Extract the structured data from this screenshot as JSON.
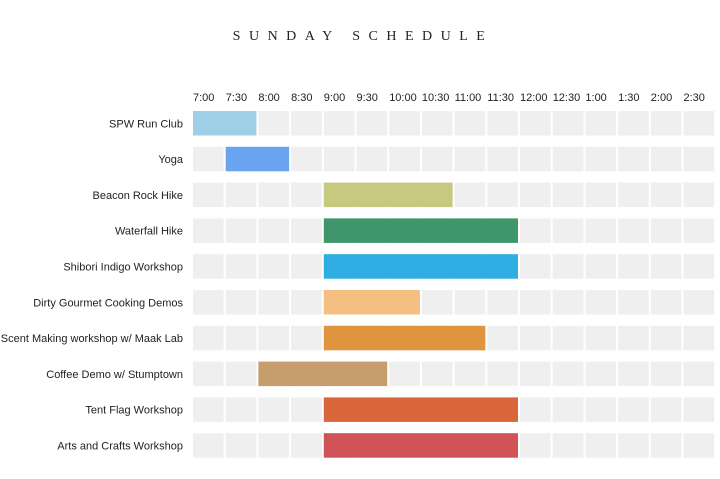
{
  "chart_data": {
    "type": "bar",
    "subtype": "gantt",
    "title": "SUNDAY SCHEDULE",
    "x_ticks": [
      "7:00",
      "7:30",
      "8:00",
      "8:30",
      "9:00",
      "9:30",
      "10:00",
      "10:30",
      "11:00",
      "11:30",
      "12:00",
      "12:30",
      "1:00",
      "1:30",
      "2:00",
      "2:30"
    ],
    "xlim": [
      "7:00",
      "3:00"
    ],
    "x_axis_position": "top",
    "grid": true,
    "grid_cell_color": "#efefef",
    "rows": [
      {
        "label": "SPW Run Club",
        "start": "7:00",
        "end": "8:00",
        "color": "#9ecfe6"
      },
      {
        "label": "Yoga",
        "start": "7:30",
        "end": "8:30",
        "color": "#6aa3ef"
      },
      {
        "label": "Beacon Rock Hike",
        "start": "9:00",
        "end": "11:00",
        "color": "#c8c981"
      },
      {
        "label": "Waterfall Hike",
        "start": "9:00",
        "end": "12:00",
        "color": "#3f966a"
      },
      {
        "label": "Shibori Indigo Workshop",
        "start": "9:00",
        "end": "12:00",
        "color": "#2eaee3"
      },
      {
        "label": "Dirty Gourmet Cooking Demos",
        "start": "9:00",
        "end": "10:30",
        "color": "#f3c082"
      },
      {
        "label": "Scent Making workshop w/ Maak Lab",
        "start": "9:00",
        "end": "11:30",
        "color": "#df943e"
      },
      {
        "label": "Coffee Demo w/ Stumptown",
        "start": "8:00",
        "end": "10:00",
        "color": "#c69d6d"
      },
      {
        "label": "Tent Flag Workshop",
        "start": "9:00",
        "end": "12:00",
        "color": "#d9653a"
      },
      {
        "label": "Arts and Crafts Workshop",
        "start": "9:00",
        "end": "12:00",
        "color": "#d15357"
      }
    ]
  }
}
